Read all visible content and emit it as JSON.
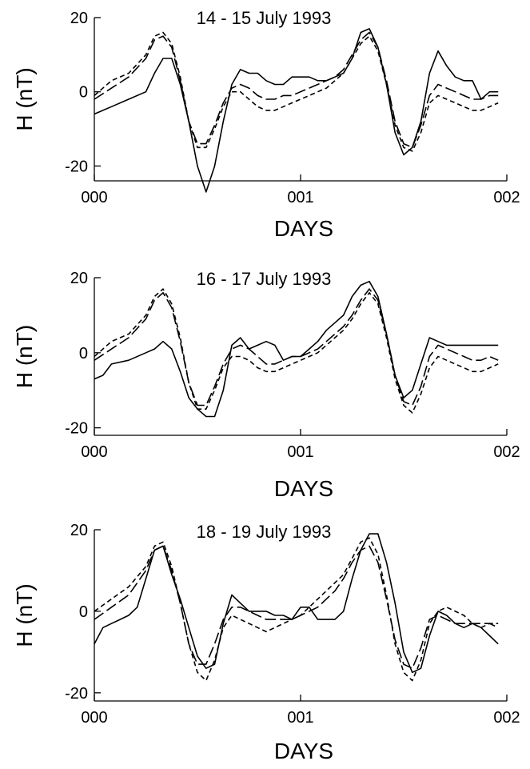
{
  "chart_data": [
    {
      "type": "line",
      "title": "14 - 15 July 1993",
      "xlabel": "DAYS",
      "ylabel": "H (nT)",
      "xlim": [
        0,
        2
      ],
      "ylim": [
        -24,
        20
      ],
      "xticks": [
        0,
        1,
        2
      ],
      "xtick_labels": [
        "000",
        "001",
        "002"
      ],
      "yticks": [
        20,
        0,
        -20
      ],
      "ytick_labels": [
        "20",
        "0",
        "-20"
      ],
      "series": [
        {
          "style": "solid",
          "x": [
            0,
            0.0833,
            0.1667,
            0.25,
            0.2917,
            0.3333,
            0.375,
            0.4167,
            0.4583,
            0.5,
            0.5417,
            0.5833,
            0.625,
            0.6667,
            0.7083,
            0.75,
            0.7917,
            0.8333,
            0.875,
            0.9167,
            0.9583,
            1,
            1.0417,
            1.0833,
            1.125,
            1.1667,
            1.2083,
            1.25,
            1.2917,
            1.3333,
            1.375,
            1.4167,
            1.4583,
            1.5,
            1.5417,
            1.5833,
            1.625,
            1.6667,
            1.7083,
            1.75,
            1.7917,
            1.8333,
            1.875,
            1.9167,
            1.9583
          ],
          "y": [
            -6,
            -4,
            -2,
            0,
            5,
            9,
            9,
            2,
            -8,
            -20,
            -27,
            -20,
            -8,
            2,
            6,
            5,
            5,
            3,
            2,
            2,
            4,
            4,
            4,
            3,
            3,
            4,
            5,
            9,
            16,
            17,
            12,
            2,
            -11,
            -17,
            -15,
            -8,
            5,
            11,
            7,
            4,
            3,
            3,
            -2,
            0,
            0
          ]
        },
        {
          "style": "long-dash",
          "x": [
            0,
            0.0833,
            0.1667,
            0.25,
            0.2917,
            0.3333,
            0.375,
            0.4167,
            0.4583,
            0.5,
            0.5417,
            0.5833,
            0.625,
            0.6667,
            0.7083,
            0.75,
            0.7917,
            0.8333,
            0.875,
            0.9167,
            0.9583,
            1,
            1.0417,
            1.0833,
            1.125,
            1.1667,
            1.2083,
            1.25,
            1.2917,
            1.3333,
            1.375,
            1.4167,
            1.4583,
            1.5,
            1.5417,
            1.5833,
            1.625,
            1.6667,
            1.7083,
            1.75,
            1.7917,
            1.8333,
            1.875,
            1.9167,
            1.9583
          ],
          "y": [
            -2,
            1,
            4,
            9,
            14,
            15,
            12,
            3,
            -8,
            -14,
            -14,
            -9,
            -3,
            1,
            2,
            1,
            -1,
            -2,
            -2,
            -1,
            -1,
            0,
            1,
            2,
            3,
            4,
            6,
            10,
            14,
            16,
            12,
            3,
            -8,
            -14,
            -15,
            -9,
            -1,
            2,
            1,
            0,
            -1,
            -2,
            -2,
            -1,
            -1
          ]
        },
        {
          "style": "short-dash",
          "x": [
            0,
            0.0833,
            0.1667,
            0.25,
            0.2917,
            0.3333,
            0.375,
            0.4167,
            0.4583,
            0.5,
            0.5417,
            0.5833,
            0.625,
            0.6667,
            0.7083,
            0.75,
            0.7917,
            0.8333,
            0.875,
            0.9167,
            0.9583,
            1,
            1.0417,
            1.0833,
            1.125,
            1.1667,
            1.2083,
            1.25,
            1.2917,
            1.3333,
            1.375,
            1.4167,
            1.4583,
            1.5,
            1.5417,
            1.5833,
            1.625,
            1.6667,
            1.7083,
            1.75,
            1.7917,
            1.8333,
            1.875,
            1.9167,
            1.9583
          ],
          "y": [
            -1,
            3,
            5,
            10,
            15,
            16,
            13,
            4,
            -8,
            -15,
            -15,
            -10,
            -4,
            0,
            0,
            -2,
            -4,
            -5,
            -5,
            -4,
            -3,
            -2,
            -1,
            0,
            1,
            3,
            5,
            9,
            13,
            15,
            11,
            2,
            -9,
            -15,
            -16,
            -11,
            -3,
            -1,
            -2,
            -3,
            -4,
            -5,
            -5,
            -4,
            -3
          ]
        }
      ]
    },
    {
      "type": "line",
      "title": "16 - 17 July 1993",
      "xlabel": "DAYS",
      "ylabel": "H (nT)",
      "xlim": [
        0,
        2
      ],
      "ylim": [
        -22,
        20
      ],
      "xticks": [
        0,
        1,
        2
      ],
      "xtick_labels": [
        "000",
        "001",
        "002"
      ],
      "yticks": [
        20,
        0,
        -20
      ],
      "ytick_labels": [
        "20",
        "0",
        "-20"
      ],
      "series": [
        {
          "style": "solid",
          "x": [
            0,
            0.0417,
            0.0833,
            0.1667,
            0.25,
            0.2917,
            0.3333,
            0.375,
            0.4167,
            0.4583,
            0.5,
            0.5417,
            0.5833,
            0.625,
            0.6667,
            0.7083,
            0.75,
            0.7917,
            0.8333,
            0.875,
            0.9167,
            0.9583,
            1,
            1.0417,
            1.0833,
            1.125,
            1.1667,
            1.2083,
            1.25,
            1.2917,
            1.3333,
            1.375,
            1.4167,
            1.4583,
            1.5,
            1.5417,
            1.5833,
            1.625,
            1.6667,
            1.7083,
            1.75,
            1.7917,
            1.8333,
            1.875,
            1.9167,
            1.9583
          ],
          "y": [
            -7,
            -6,
            -3,
            -2,
            0,
            1,
            3,
            1,
            -5,
            -12,
            -15,
            -17,
            -17,
            -10,
            2,
            4,
            1,
            2,
            3,
            2,
            -2,
            -1,
            -1,
            1,
            3,
            6,
            8,
            10,
            15,
            18,
            19,
            15,
            5,
            -6,
            -12,
            -10,
            -3,
            4,
            3,
            2,
            2,
            2,
            2,
            2,
            2,
            2
          ]
        },
        {
          "style": "long-dash",
          "x": [
            0,
            0.0833,
            0.1667,
            0.25,
            0.2917,
            0.3333,
            0.375,
            0.4167,
            0.4583,
            0.5,
            0.5417,
            0.5833,
            0.625,
            0.6667,
            0.7083,
            0.75,
            0.7917,
            0.8333,
            0.875,
            0.9167,
            0.9583,
            1,
            1.0417,
            1.0833,
            1.125,
            1.1667,
            1.2083,
            1.25,
            1.2917,
            1.3333,
            1.375,
            1.4167,
            1.4583,
            1.5,
            1.5417,
            1.5833,
            1.625,
            1.6667,
            1.7083,
            1.75,
            1.7917,
            1.8333,
            1.875,
            1.9167,
            1.9583
          ],
          "y": [
            -2,
            1,
            4,
            9,
            14,
            16,
            12,
            3,
            -8,
            -14,
            -14,
            -9,
            -3,
            1,
            2,
            1,
            -1,
            -3,
            -3,
            -2,
            -1,
            -1,
            0,
            1,
            3,
            5,
            7,
            10,
            14,
            17,
            14,
            5,
            -6,
            -13,
            -14,
            -9,
            -1,
            2,
            1,
            0,
            -1,
            -2,
            -2,
            -1,
            -2
          ]
        },
        {
          "style": "short-dash",
          "x": [
            0,
            0.0833,
            0.1667,
            0.25,
            0.2917,
            0.3333,
            0.375,
            0.4167,
            0.4583,
            0.5,
            0.5417,
            0.5833,
            0.625,
            0.6667,
            0.7083,
            0.75,
            0.7917,
            0.8333,
            0.875,
            0.9167,
            0.9583,
            1,
            1.0417,
            1.0833,
            1.125,
            1.1667,
            1.2083,
            1.25,
            1.2917,
            1.3333,
            1.375,
            1.4167,
            1.4583,
            1.5,
            1.5417,
            1.5833,
            1.625,
            1.6667,
            1.7083,
            1.75,
            1.7917,
            1.8333,
            1.875,
            1.9167,
            1.9583
          ],
          "y": [
            -1,
            3,
            5,
            10,
            15,
            17,
            13,
            4,
            -8,
            -15,
            -15,
            -10,
            -4,
            -1,
            -1,
            -2,
            -4,
            -5,
            -5,
            -4,
            -3,
            -2,
            -1,
            0,
            2,
            4,
            6,
            9,
            13,
            16,
            13,
            4,
            -7,
            -14,
            -16,
            -11,
            -4,
            -1,
            -2,
            -3,
            -4,
            -5,
            -5,
            -4,
            -3
          ]
        }
      ]
    },
    {
      "type": "line",
      "title": "18 - 19 July 1993",
      "xlabel": "DAYS",
      "ylabel": "H (nT)",
      "xlim": [
        0,
        2
      ],
      "ylim": [
        -22,
        20
      ],
      "xticks": [
        0,
        1,
        2
      ],
      "xtick_labels": [
        "000",
        "001",
        "002"
      ],
      "yticks": [
        20,
        0,
        -20
      ],
      "ytick_labels": [
        "20",
        "0",
        "-20"
      ],
      "series": [
        {
          "style": "solid",
          "x": [
            0,
            0.0417,
            0.0833,
            0.125,
            0.1667,
            0.2083,
            0.25,
            0.2917,
            0.3333,
            0.375,
            0.4167,
            0.4583,
            0.5,
            0.5417,
            0.5833,
            0.625,
            0.6667,
            0.7083,
            0.75,
            0.7917,
            0.8333,
            0.875,
            0.9167,
            0.9583,
            1,
            1.0417,
            1.0833,
            1.125,
            1.1667,
            1.2083,
            1.25,
            1.2917,
            1.3333,
            1.375,
            1.4167,
            1.4583,
            1.5,
            1.5417,
            1.5833,
            1.625,
            1.6667,
            1.7083,
            1.75,
            1.7917,
            1.8333,
            1.875,
            1.9167,
            1.9583
          ],
          "y": [
            -8,
            -4,
            -3,
            -2,
            -1,
            1,
            8,
            15,
            16,
            9,
            3,
            -4,
            -11,
            -14,
            -13,
            -3,
            4,
            2,
            0,
            0,
            0,
            -1,
            -1,
            -2,
            1,
            1,
            -2,
            -2,
            -2,
            0,
            8,
            15,
            19,
            19,
            12,
            2,
            -10,
            -15,
            -14,
            -6,
            0,
            -1,
            -3,
            -4,
            -3,
            -4,
            -6,
            -8
          ]
        },
        {
          "style": "long-dash",
          "x": [
            0,
            0.0833,
            0.1667,
            0.25,
            0.2917,
            0.3333,
            0.375,
            0.4167,
            0.4583,
            0.5,
            0.5417,
            0.5833,
            0.625,
            0.6667,
            0.7083,
            0.75,
            0.7917,
            0.8333,
            0.875,
            0.9167,
            0.9583,
            1,
            1.0417,
            1.0833,
            1.125,
            1.1667,
            1.2083,
            1.25,
            1.2917,
            1.3333,
            1.375,
            1.4167,
            1.4583,
            1.5,
            1.5417,
            1.5833,
            1.625,
            1.6667,
            1.7083,
            1.75,
            1.7917,
            1.8333,
            1.875,
            1.9167,
            1.9583
          ],
          "y": [
            -2,
            1,
            4,
            10,
            15,
            16,
            10,
            2,
            -8,
            -13,
            -13,
            -8,
            -2,
            1,
            1,
            0,
            -1,
            -2,
            -2,
            -2,
            -2,
            -1,
            0,
            1,
            3,
            5,
            8,
            12,
            15,
            16,
            12,
            3,
            -7,
            -13,
            -14,
            -9,
            -2,
            -1,
            -2,
            -3,
            -3,
            -3,
            -3,
            -3,
            -4
          ]
        },
        {
          "style": "short-dash",
          "x": [
            0,
            0.0833,
            0.1667,
            0.25,
            0.2917,
            0.3333,
            0.375,
            0.4167,
            0.4583,
            0.5,
            0.5417,
            0.5833,
            0.625,
            0.6667,
            0.7083,
            0.75,
            0.7917,
            0.8333,
            0.875,
            0.9167,
            0.9583,
            1,
            1.0417,
            1.0833,
            1.125,
            1.1667,
            1.2083,
            1.25,
            1.2917,
            1.3333,
            1.375,
            1.4167,
            1.4583,
            1.5,
            1.5417,
            1.5833,
            1.625,
            1.6667,
            1.7083,
            1.75,
            1.7917,
            1.8333,
            1.875,
            1.9167,
            1.9583
          ],
          "y": [
            0,
            3,
            6,
            11,
            16,
            17,
            11,
            2,
            -8,
            -15,
            -17,
            -12,
            -4,
            -1,
            -2,
            -3,
            -4,
            -5,
            -4,
            -3,
            -2,
            -1,
            1,
            3,
            5,
            7,
            9,
            13,
            17,
            18,
            14,
            4,
            -8,
            -15,
            -17,
            -12,
            -3,
            0,
            1,
            0,
            -1,
            -3,
            -4,
            -3,
            -3
          ]
        }
      ]
    }
  ]
}
